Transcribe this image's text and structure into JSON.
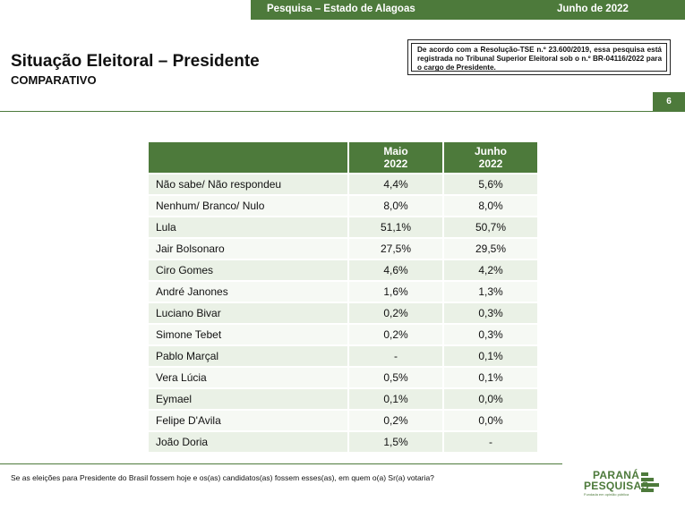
{
  "header": {
    "survey": "Pesquisa – Estado de Alagoas",
    "date": "Junho de 2022"
  },
  "title": "Situação Eleitoral – Presidente",
  "subtitle": "COMPARATIVO",
  "notice": "De acordo com a Resolução-TSE n.º 23.600/2019, essa pesquisa está registrada no Tribunal Superior Eleitoral sob o n.º BR-04116/2022 para o cargo de Presidente.",
  "page_number": "6",
  "table": {
    "col1_line1": "Maio",
    "col1_line2": "2022",
    "col2_line1": "Junho",
    "col2_line2": "2022",
    "rows": [
      {
        "name": "Não sabe/ Não respondeu",
        "maio": "4,4%",
        "junho": "5,6%"
      },
      {
        "name": "Nenhum/ Branco/ Nulo",
        "maio": "8,0%",
        "junho": "8,0%"
      },
      {
        "name": "Lula",
        "maio": "51,1%",
        "junho": "50,7%"
      },
      {
        "name": "Jair Bolsonaro",
        "maio": "27,5%",
        "junho": "29,5%"
      },
      {
        "name": "Ciro Gomes",
        "maio": "4,6%",
        "junho": "4,2%"
      },
      {
        "name": "André Janones",
        "maio": "1,6%",
        "junho": "1,3%"
      },
      {
        "name": "Luciano Bivar",
        "maio": "0,2%",
        "junho": "0,3%"
      },
      {
        "name": "Simone Tebet",
        "maio": "0,2%",
        "junho": "0,3%"
      },
      {
        "name": "Pablo Marçal",
        "maio": "-",
        "junho": "0,1%"
      },
      {
        "name": "Vera Lúcia",
        "maio": "0,5%",
        "junho": "0,1%"
      },
      {
        "name": "Eymael",
        "maio": "0,1%",
        "junho": "0,0%"
      },
      {
        "name": "Felipe D'Avila",
        "maio": "0,2%",
        "junho": "0,0%"
      },
      {
        "name": "João Doria",
        "maio": "1,5%",
        "junho": "-"
      }
    ]
  },
  "question": "Se as eleições para Presidente do Brasil fossem hoje e os(as) candidatos(as) fossem esses(as), em quem o(a) Sr(a) votaria?",
  "logo": {
    "line1": "PARANÁ",
    "line2": "PESQUISAS",
    "tagline": "Fundada em opinião pública"
  },
  "colors": {
    "brand_green": "#4d7a3b",
    "row_light": "#eaf1e6",
    "row_lighter": "#f6f9f4"
  }
}
